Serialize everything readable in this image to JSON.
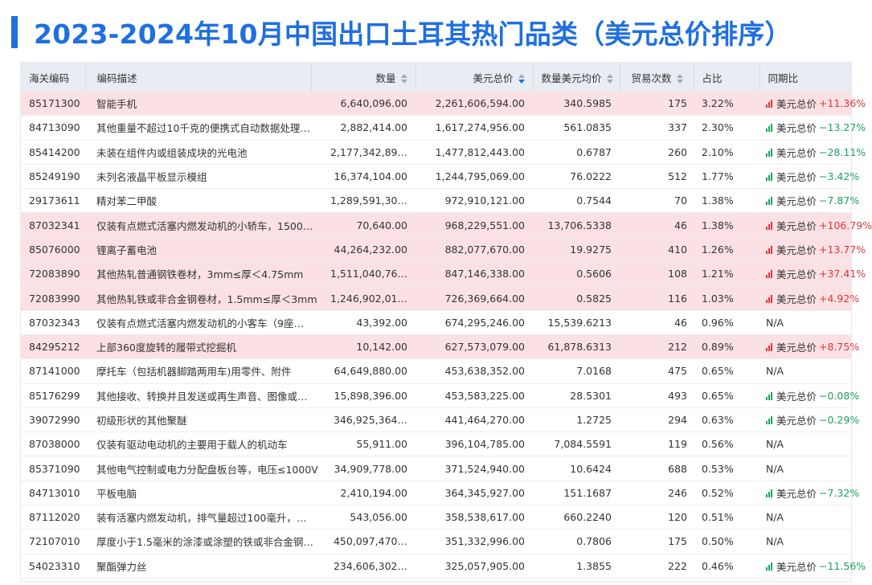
{
  "title": "2023-2024年10月中国出口土耳其热门品类（美元总价排序）",
  "colors": {
    "accent": "#1f6fe0",
    "highlight_row": "#fbe1e3",
    "up": "#e0343b",
    "down": "#1aa35c"
  },
  "table": {
    "headers": {
      "code": "海关编码",
      "desc": "编码描述",
      "qty": "数量",
      "usd": "美元总价",
      "avg": "数量美元均价",
      "count": "贸易次数",
      "share": "占比",
      "yoy": "同期比"
    },
    "yoy_label": "美元总价",
    "rows": [
      {
        "code": "85171300",
        "desc": "智能手机",
        "qty": "6,640,096.00",
        "usd": "2,261,606,594.00",
        "avg": "340.5985",
        "count": "175",
        "share": "3.22%",
        "yoy": "+11.36%",
        "dir": "up",
        "hl": true
      },
      {
        "code": "84713090",
        "desc": "其他重量不超过10千克的便携式自动数据处理…",
        "qty": "2,882,414.00",
        "usd": "1,617,274,956.00",
        "avg": "561.0835",
        "count": "337",
        "share": "2.30%",
        "yoy": "−13.27%",
        "dir": "down",
        "hl": false
      },
      {
        "code": "85414200",
        "desc": "未装在组件内或组装成块的光电池",
        "qty": "2,177,342,89…",
        "usd": "1,477,812,443.00",
        "avg": "0.6787",
        "count": "260",
        "share": "2.10%",
        "yoy": "−28.11%",
        "dir": "down",
        "hl": false
      },
      {
        "code": "85249190",
        "desc": "未列名液晶平板显示模组",
        "qty": "16,374,104.00",
        "usd": "1,244,795,069.00",
        "avg": "76.0222",
        "count": "512",
        "share": "1.77%",
        "yoy": "−3.42%",
        "dir": "down",
        "hl": false
      },
      {
        "code": "29173611",
        "desc": "精对苯二甲酸",
        "qty": "1,289,591,30…",
        "usd": "972,910,121.00",
        "avg": "0.7544",
        "count": "70",
        "share": "1.38%",
        "yoy": "−7.87%",
        "dir": "down",
        "hl": false
      },
      {
        "code": "87032341",
        "desc": "仅装有点燃式活塞内燃发动机的小轿车，1500…",
        "qty": "70,640.00",
        "usd": "968,229,551.00",
        "avg": "13,706.5338",
        "count": "46",
        "share": "1.38%",
        "yoy": "+106.79%",
        "dir": "up",
        "hl": true
      },
      {
        "code": "85076000",
        "desc": "锂离子蓄电池",
        "qty": "44,264,232.00",
        "usd": "882,077,670.00",
        "avg": "19.9275",
        "count": "410",
        "share": "1.26%",
        "yoy": "+13.77%",
        "dir": "up",
        "hl": true
      },
      {
        "code": "72083890",
        "desc": "其他热轧普通钢铁卷材，3mm≤厚＜4.75mm",
        "qty": "1,511,040,76…",
        "usd": "847,146,338.00",
        "avg": "0.5606",
        "count": "108",
        "share": "1.21%",
        "yoy": "+37.41%",
        "dir": "up",
        "hl": true
      },
      {
        "code": "72083990",
        "desc": "其他热轧铁或非合金钢卷材，1.5mm≤厚＜3mm",
        "qty": "1,246,902,01…",
        "usd": "726,369,664.00",
        "avg": "0.5825",
        "count": "116",
        "share": "1.03%",
        "yoy": "+4.92%",
        "dir": "up",
        "hl": true
      },
      {
        "code": "87032343",
        "desc": "仅装有点燃式活塞内燃发动机的小客车（9座…",
        "qty": "43,392.00",
        "usd": "674,295,246.00",
        "avg": "15,539.6213",
        "count": "46",
        "share": "0.96%",
        "yoy": "N/A",
        "dir": "na",
        "hl": false
      },
      {
        "code": "84295212",
        "desc": "上部360度旋转的履带式挖掘机",
        "qty": "10,142.00",
        "usd": "627,573,079.00",
        "avg": "61,878.6313",
        "count": "212",
        "share": "0.89%",
        "yoy": "+8.75%",
        "dir": "up",
        "hl": true
      },
      {
        "code": "87141000",
        "desc": "摩托车（包括机器脚踏两用车)用零件、附件",
        "qty": "64,649,880.00",
        "usd": "453,638,352.00",
        "avg": "7.0168",
        "count": "475",
        "share": "0.65%",
        "yoy": "N/A",
        "dir": "na",
        "hl": false
      },
      {
        "code": "85176299",
        "desc": "其他接收、转换并且发送或再生声音、图像或…",
        "qty": "15,898,396.00",
        "usd": "453,583,225.00",
        "avg": "28.5301",
        "count": "493",
        "share": "0.65%",
        "yoy": "−0.08%",
        "dir": "down",
        "hl": false
      },
      {
        "code": "39072990",
        "desc": "初级形状的其他聚醚",
        "qty": "346,925,364…",
        "usd": "441,464,270.00",
        "avg": "1.2725",
        "count": "294",
        "share": "0.63%",
        "yoy": "−0.29%",
        "dir": "down",
        "hl": false
      },
      {
        "code": "87038000",
        "desc": "仅装有驱动电动机的主要用于载人的机动车",
        "qty": "55,911.00",
        "usd": "396,104,785.00",
        "avg": "7,084.5591",
        "count": "119",
        "share": "0.56%",
        "yoy": "N/A",
        "dir": "na",
        "hl": false
      },
      {
        "code": "85371090",
        "desc": "其他电气控制或电力分配盘板台等，电压≤1000V",
        "qty": "34,909,778.00",
        "usd": "371,524,940.00",
        "avg": "10.6424",
        "count": "688",
        "share": "0.53%",
        "yoy": "N/A",
        "dir": "na",
        "hl": false
      },
      {
        "code": "84713010",
        "desc": "平板电脑",
        "qty": "2,410,194.00",
        "usd": "364,345,927.00",
        "avg": "151.1687",
        "count": "246",
        "share": "0.52%",
        "yoy": "−7.32%",
        "dir": "down",
        "hl": false
      },
      {
        "code": "87112020",
        "desc": "装有活塞内燃发动机，排气量超过100毫升，…",
        "qty": "543,056.00",
        "usd": "358,538,617.00",
        "avg": "660.2240",
        "count": "120",
        "share": "0.51%",
        "yoy": "N/A",
        "dir": "na",
        "hl": false
      },
      {
        "code": "72107010",
        "desc": "厚度小于1.5毫米的涂漆或涂塑的铁或非合金钢…",
        "qty": "450,097,470…",
        "usd": "351,332,996.00",
        "avg": "0.7806",
        "count": "175",
        "share": "0.50%",
        "yoy": "N/A",
        "dir": "na",
        "hl": false
      },
      {
        "code": "54023310",
        "desc": "聚酯弹力丝",
        "qty": "234,606,302…",
        "usd": "325,057,905.00",
        "avg": "1.3855",
        "count": "222",
        "share": "0.46%",
        "yoy": "−11.56%",
        "dir": "down",
        "hl": false
      }
    ]
  }
}
